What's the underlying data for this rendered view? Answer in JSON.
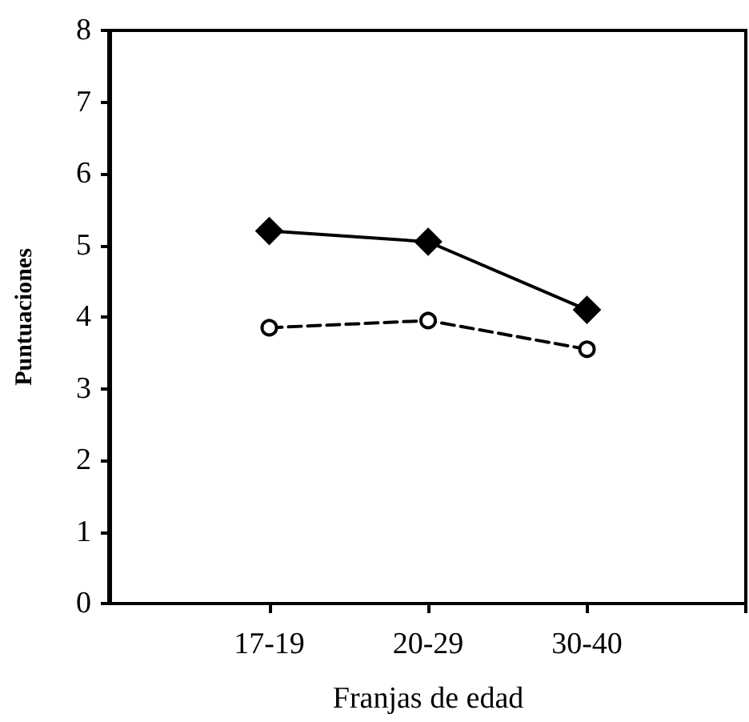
{
  "chart_data": {
    "type": "line",
    "xlabel": "Franjas de edad",
    "ylabel": "Puntuaciones",
    "categories": [
      "17-19",
      "20-29",
      "30-40"
    ],
    "series": [
      {
        "color": "#000000",
        "values": [
          5.2,
          5.05,
          4.1
        ],
        "marker": "diamond",
        "line_style": "solid"
      },
      {
        "color": "#000000",
        "values": [
          3.85,
          3.95,
          3.55
        ],
        "marker": "circle",
        "line_style": "dashed"
      }
    ],
    "ylim": [
      0,
      8
    ],
    "yticks": [
      0,
      1,
      2,
      3,
      4,
      5,
      6,
      7,
      8
    ],
    "grid": false
  }
}
